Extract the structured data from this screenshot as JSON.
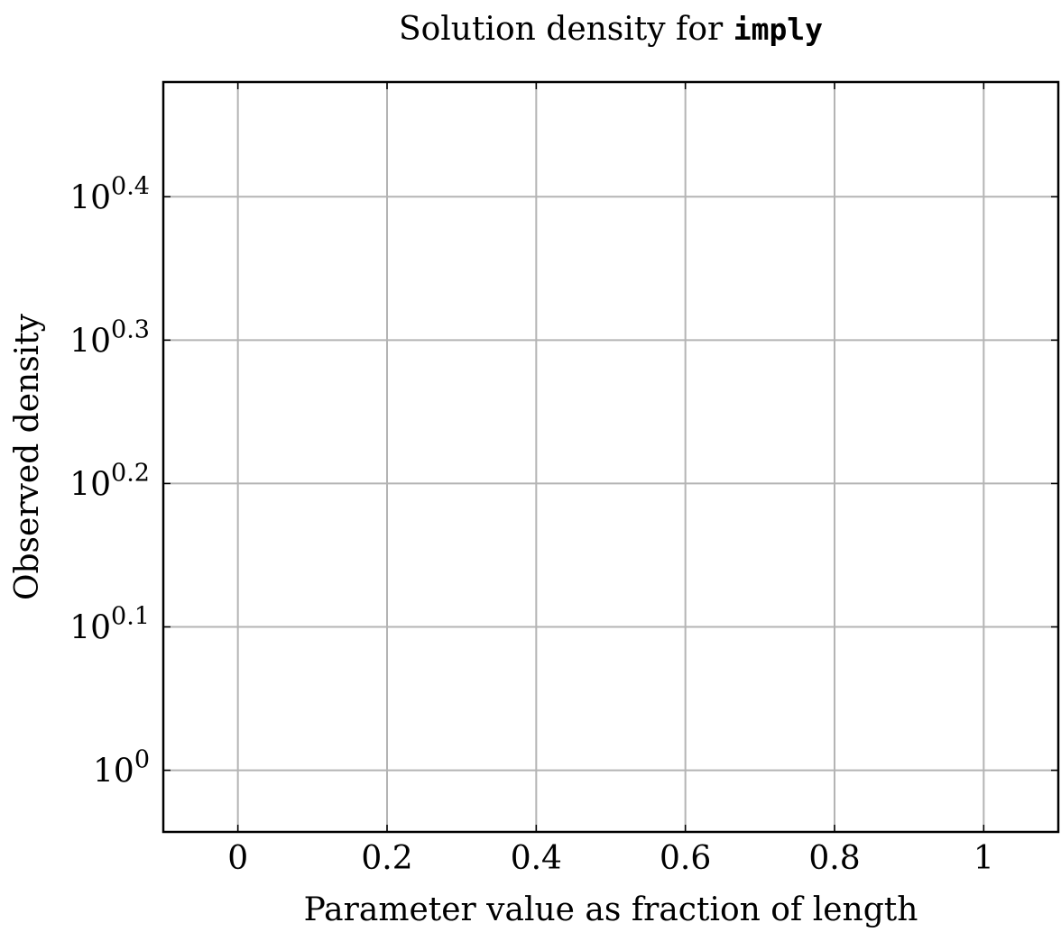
{
  "chart_data": {
    "type": "scatter",
    "title_text": "Solution density for ",
    "title_code": "imply",
    "xlabel": "Parameter value as fraction of length",
    "ylabel": "Observed density",
    "x": [],
    "y": [],
    "xlim": [
      -0.1,
      1.1
    ],
    "ylim_log10": [
      -0.043,
      0.48
    ],
    "yscale": "log",
    "grid": true,
    "xticks": [
      0,
      0.2,
      0.4,
      0.6,
      0.8,
      1
    ],
    "xtick_labels": [
      "0",
      "0.2",
      "0.4",
      "0.6",
      "0.8",
      "1"
    ],
    "yticks_log10": [
      0,
      0.1,
      0.2,
      0.3,
      0.4
    ],
    "ytick_base": "10",
    "ytick_exponents": [
      "0",
      "0.1",
      "0.2",
      "0.3",
      "0.4"
    ]
  }
}
